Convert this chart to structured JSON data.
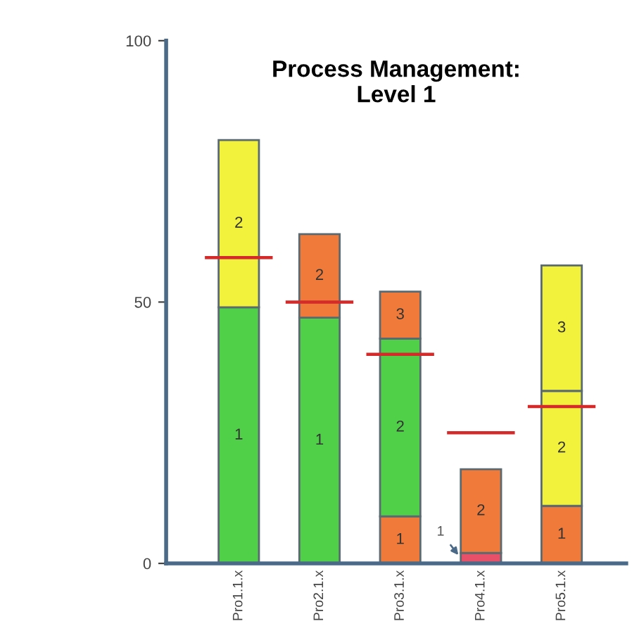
{
  "chart_data": {
    "type": "bar",
    "stacked": true,
    "title": "Process Management:\nLevel 1",
    "categories": [
      "Pro1.1.x",
      "Pro2.1.x",
      "Pro3.1.x",
      "Pro4.1.x",
      "Pro5.1.x"
    ],
    "series": [
      {
        "name": "1",
        "colors": [
          "#4fd048",
          "#4fd048",
          "#f07a3a",
          "#e8506a",
          "#f07a3a"
        ],
        "values": [
          49,
          47,
          9,
          2,
          11
        ]
      },
      {
        "name": "2",
        "colors": [
          "#f2f23c",
          "#f07a3a",
          "#4fd048",
          "#f07a3a",
          "#f2f23c"
        ],
        "values": [
          32,
          16,
          34,
          16,
          22
        ]
      },
      {
        "name": "3",
        "colors": [
          null,
          null,
          "#f07a3a",
          null,
          "#f2f23c"
        ],
        "values": [
          null,
          null,
          9,
          null,
          24
        ]
      }
    ],
    "ref_lines": [
      {
        "axis": "y",
        "value": 58.5,
        "color": "#d42a2a"
      },
      {
        "axis": "y",
        "value": 50,
        "color": "#d42a2a"
      },
      {
        "axis": "y",
        "value": 40,
        "color": "#d42a2a"
      },
      {
        "axis": "y",
        "value": 25,
        "color": "#d42a2a"
      },
      {
        "axis": "y",
        "value": 30,
        "color": "#d42a2a"
      }
    ],
    "ylim": [
      0,
      100
    ],
    "yticks": [
      0,
      50,
      100
    ],
    "grid": false
  }
}
